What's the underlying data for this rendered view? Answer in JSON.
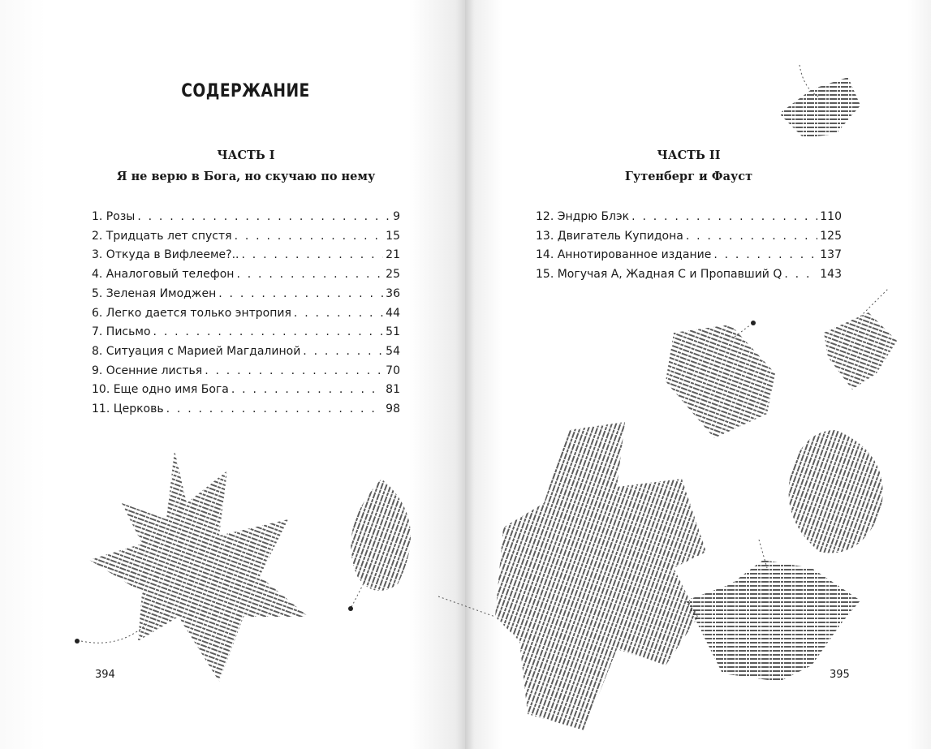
{
  "left_page": {
    "title": "СОДЕРЖАНИЕ",
    "part_label": "ЧАСТЬ I",
    "part_title": "Я не верю в Бога, но скучаю по нему",
    "entries": [
      {
        "title": "1. Розы",
        "page": "9"
      },
      {
        "title": "2. Тридцать лет спустя",
        "page": "15"
      },
      {
        "title": "3. Откуда в Вифлееме?..",
        "page": "21"
      },
      {
        "title": "4. Аналоговый телефон",
        "page": "25"
      },
      {
        "title": "5. Зеленая Имоджен",
        "page": "36"
      },
      {
        "title": "6. Легко дается только энтропия",
        "page": "44"
      },
      {
        "title": "7. Письмо",
        "page": "51"
      },
      {
        "title": "8. Ситуация с Марией Магдалиной",
        "page": "54"
      },
      {
        "title": "9. Осенние листья",
        "page": "70"
      },
      {
        "title": "10. Еще одно имя Бога",
        "page": "81"
      },
      {
        "title": "11. Церковь",
        "page": "98"
      }
    ],
    "page_number": "394"
  },
  "right_page": {
    "part_label": "ЧАСТЬ II",
    "part_title": "Гутенберг и Фауст",
    "entries": [
      {
        "title": "12. Эндрю Блэк",
        "page": "110"
      },
      {
        "title": "13. Двигатель Купидона",
        "page": "125"
      },
      {
        "title": "14. Аннотированное издание",
        "page": "137"
      },
      {
        "title": "15. Могучая А, Жадная С и Пропавший Q",
        "page": "143"
      }
    ],
    "page_number": "395"
  },
  "illustrations": {
    "type": "text-calligram-leaves",
    "ink_color": "#222222"
  }
}
